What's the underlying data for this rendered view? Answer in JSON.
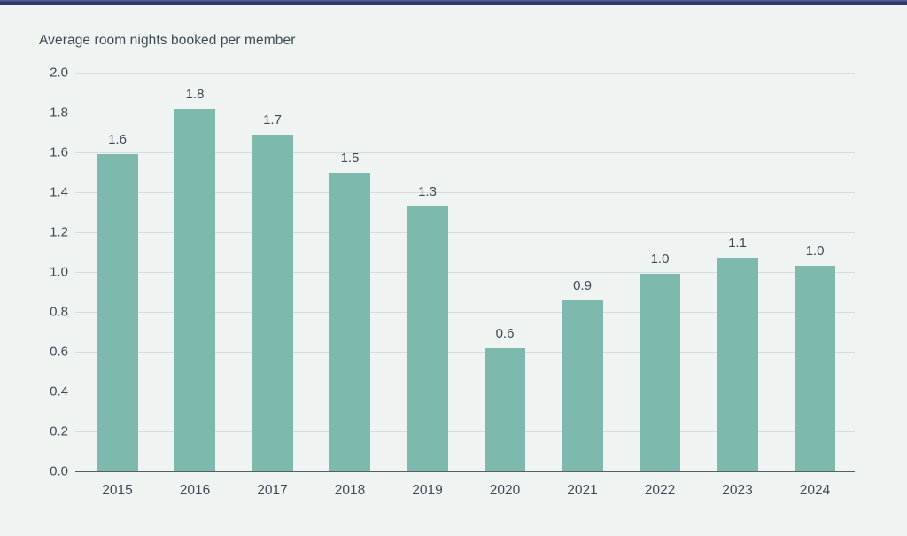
{
  "page": {
    "background_color": "#eff3f2",
    "top_accent_color": "#2b3a67",
    "top_accent_highlight": "#50608f"
  },
  "chart_data": {
    "type": "bar",
    "title": "Average room nights booked per member",
    "categories": [
      "2015",
      "2016",
      "2017",
      "2018",
      "2019",
      "2020",
      "2021",
      "2022",
      "2023",
      "2024"
    ],
    "values": [
      1.59,
      1.82,
      1.69,
      1.5,
      1.33,
      0.62,
      0.86,
      0.99,
      1.07,
      1.03
    ],
    "data_labels": [
      "1.6",
      "1.8",
      "1.7",
      "1.5",
      "1.3",
      "0.6",
      "0.9",
      "1.0",
      "1.1",
      "1.0"
    ],
    "xlabel": "",
    "ylabel": "",
    "ylim": [
      0,
      2.0
    ],
    "ytick_step": 0.2,
    "ytick_labels": [
      "2.0",
      "1.8",
      "1.6",
      "1.4",
      "1.2",
      "1.0",
      "0.8",
      "0.6",
      "0.4",
      "0.2",
      "0.0"
    ],
    "grid": true,
    "legend": "none",
    "colors": {
      "bar": "#7eb9ad",
      "text": "#3d4a53",
      "grid": "#d7dddc",
      "axis": "#555f66"
    }
  }
}
